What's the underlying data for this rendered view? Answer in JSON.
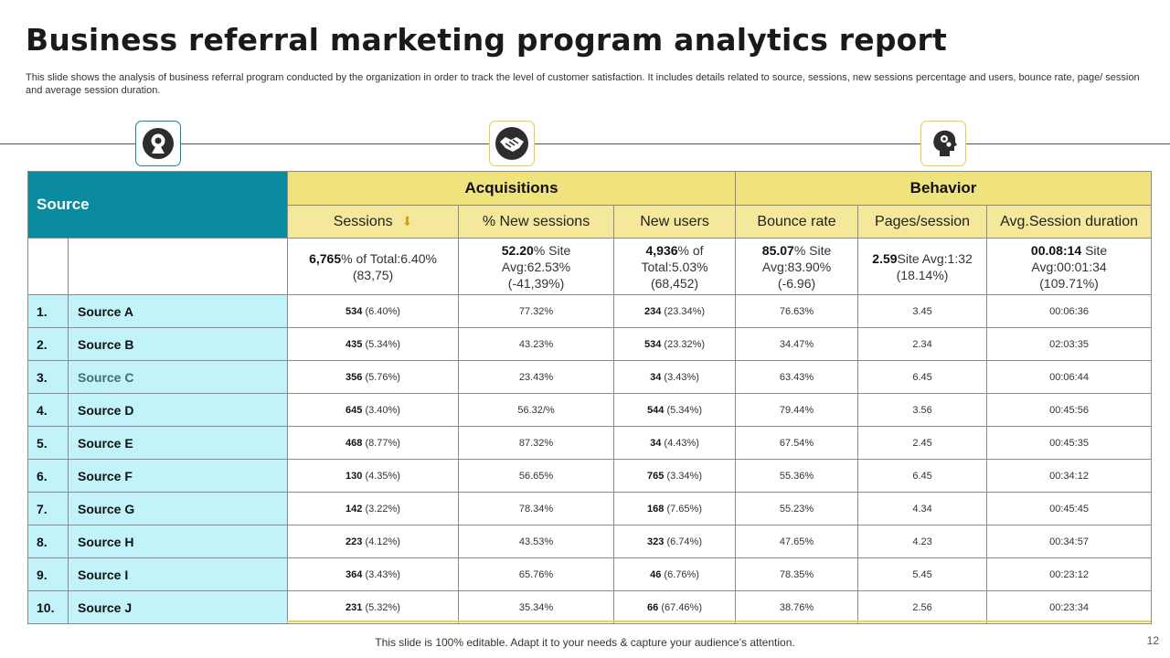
{
  "title": "Business referral marketing program analytics report",
  "subtitle": "This slide shows the analysis of business referral program conducted by the organization in order to track the level of customer satisfaction. It includes details related to source, sessions, new sessions percentage and users, bounce rate, page/ session and average session duration.",
  "icons": [
    "target-icon",
    "handshake-icon",
    "head-gears-icon"
  ],
  "colors": {
    "teal": "#098a9e",
    "light_teal": "#c2f3fb",
    "yellow": "#f0e27d",
    "light_yellow": "#f5e89a"
  },
  "table": {
    "source_header": "Source",
    "groups": {
      "acquisitions": "Acquisitions",
      "behavior": "Behavior"
    },
    "columns": {
      "sessions": "Sessions",
      "new_sessions": "% New sessions",
      "new_users": "New users",
      "bounce_rate": "Bounce rate",
      "pages_session": "Pages/session",
      "avg_duration": "Avg.Session duration"
    },
    "totals": {
      "sessions": {
        "bold": "6,765",
        "line1": "% of Total:6.40%",
        "line2": "(83,75)"
      },
      "new_sessions": {
        "bold": "52.20",
        "line1": "% Site",
        "line2": "Avg:62.53%",
        "line3": "(-41,39%)"
      },
      "new_users": {
        "bold": "4,936",
        "line1": "% of",
        "line2": "Total:5.03%",
        "line3": "(68,452)"
      },
      "bounce_rate": {
        "bold": "85.07",
        "line1": "% Site",
        "line2": "Avg:83.90%",
        "line3": "(-6.96)"
      },
      "pages_session": {
        "bold": "2.59",
        "line1": "Site Avg:1:32",
        "line2": "(18.14%)"
      },
      "avg_duration": {
        "bold": "00.08:14",
        "line1": " Site",
        "line2": "Avg:00:01:34",
        "line3": "(109.71%)"
      }
    },
    "rows": [
      {
        "num": "1.",
        "name": "Source A",
        "sessions": "534",
        "sessions_pct": "(6.40%)",
        "new_sessions": "77.32%",
        "new_users": "234",
        "new_users_pct": "(23.34%)",
        "bounce": "76.63%",
        "pages": "3.45",
        "duration": "00:06:36"
      },
      {
        "num": "2.",
        "name": "Source B",
        "sessions": "435",
        "sessions_pct": "(5.34%)",
        "new_sessions": "43.23%",
        "new_users": "534",
        "new_users_pct": "(23.32%)",
        "bounce": "34.47%",
        "pages": "2.34",
        "duration": "02:03:35"
      },
      {
        "num": "3.",
        "name": "Source C",
        "sessions": "356",
        "sessions_pct": "(5.76%)",
        "new_sessions": "23.43%",
        "new_users": "34",
        "new_users_pct": "(3.43%)",
        "bounce": "63.43%",
        "pages": "6.45",
        "duration": "00:06:44"
      },
      {
        "num": "4.",
        "name": "Source D",
        "sessions": "645",
        "sessions_pct": "(3.40%)",
        "new_sessions": "56.32/%",
        "new_users": "544",
        "new_users_pct": "(5.34%)",
        "bounce": "79.44%",
        "pages": "3.56",
        "duration": "00:45:56"
      },
      {
        "num": "5.",
        "name": "Source E",
        "sessions": "468",
        "sessions_pct": "(8.77%)",
        "new_sessions": "87.32%",
        "new_users": "34",
        "new_users_pct": "(4.43%)",
        "bounce": "67.54%",
        "pages": "2.45",
        "duration": "00:45:35"
      },
      {
        "num": "6.",
        "name": "Source F",
        "sessions": "130",
        "sessions_pct": "(4.35%)",
        "new_sessions": "56.65%",
        "new_users": "765",
        "new_users_pct": "(3.34%)",
        "bounce": "55.36%",
        "pages": "6.45",
        "duration": "00:34:12"
      },
      {
        "num": "7.",
        "name": "Source G",
        "sessions": "142",
        "sessions_pct": "(3.22%)",
        "new_sessions": "78.34%",
        "new_users": "168",
        "new_users_pct": "(7.65%)",
        "bounce": "55.23%",
        "pages": "4.34",
        "duration": "00:45:45"
      },
      {
        "num": "8.",
        "name": "Source H",
        "sessions": "223",
        "sessions_pct": "(4.12%)",
        "new_sessions": "43.53%",
        "new_users": "323",
        "new_users_pct": "(6.74%)",
        "bounce": "47.65%",
        "pages": "4.23",
        "duration": "00:34:57"
      },
      {
        "num": "9.",
        "name": "Source I",
        "sessions": "364",
        "sessions_pct": "(3.43%)",
        "new_sessions": "65.76%",
        "new_users": "46",
        "new_users_pct": "(6.76%)",
        "bounce": "78.35%",
        "pages": "5.45",
        "duration": "00:23:12"
      },
      {
        "num": "10.",
        "name": "Source J",
        "sessions": "231",
        "sessions_pct": "(5.32%)",
        "new_sessions": "35.34%",
        "new_users": "66",
        "new_users_pct": "(67.46%)",
        "bounce": "38.76%",
        "pages": "2.56",
        "duration": "00:23:34"
      }
    ]
  },
  "footer": "This slide is 100% editable. Adapt it to your needs & capture your audience’s attention.",
  "page_number": "12"
}
